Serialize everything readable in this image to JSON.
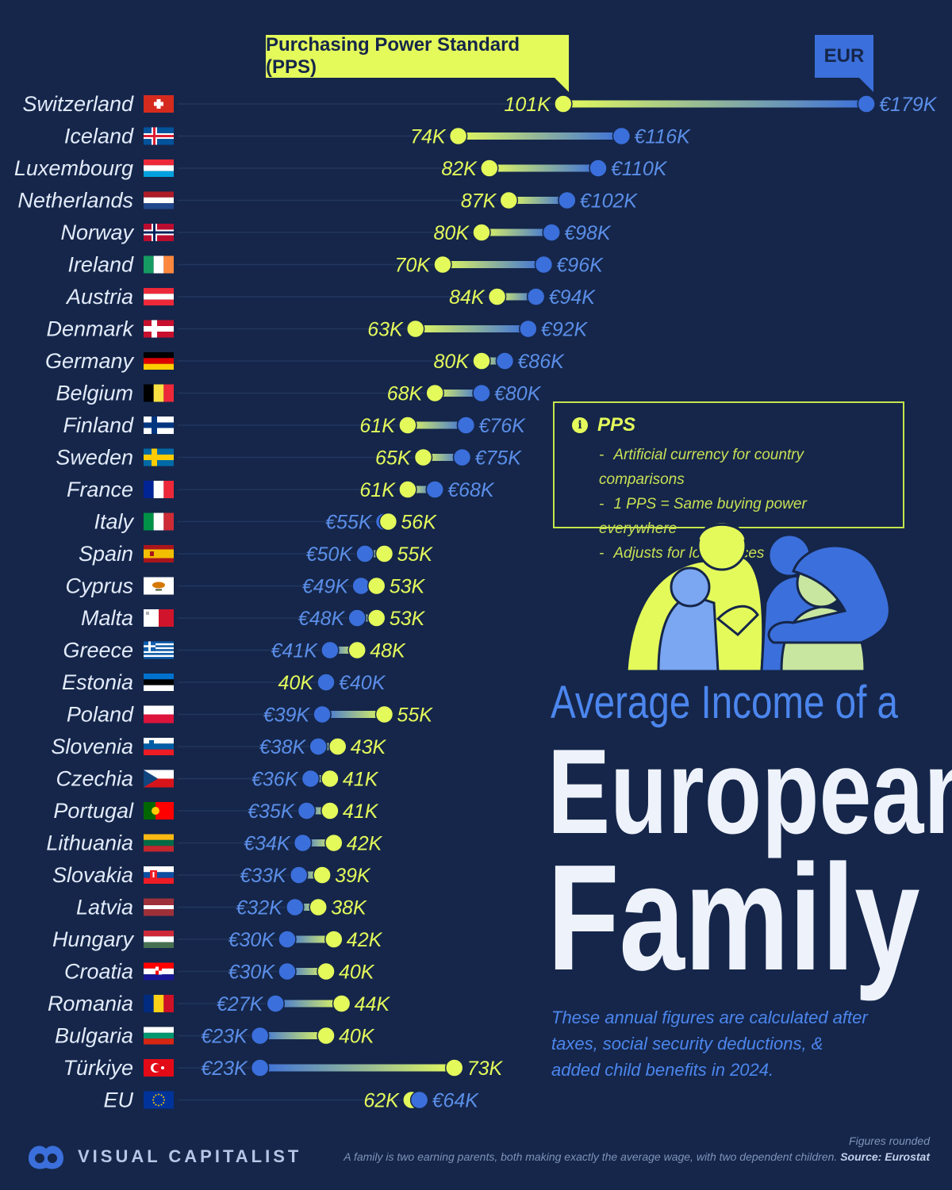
{
  "header": {
    "pps_label": "Purchasing Power Standard (PPS)",
    "eur_label": "EUR"
  },
  "title": {
    "line1": "Average Income of a",
    "line2": "European",
    "line3": "Family"
  },
  "subtitle": "These annual figures are calculated after taxes, social security deductions, & added child benefits in 2024.",
  "info_box": {
    "title": "PPS",
    "items": [
      "Artificial currency for country comparisons",
      "1 PPS = Same buying power everywhere",
      "Adjusts for local prices"
    ]
  },
  "footer": {
    "brand": "VISUAL CAPITALIST",
    "rounded": "Figures rounded",
    "note": "A family is two earning parents, both making exactly the average wage, with two dependent children.",
    "source": "Source: Eurostat"
  },
  "colors": {
    "background": "#15264a",
    "pps": "#e4fa5b",
    "eur": "#3b6fdb",
    "eur_text": "#5b8ee8",
    "country_text": "#e3ebfa"
  },
  "chart_data": {
    "type": "dumbbell",
    "units": "thousands",
    "series": [
      {
        "name": "Purchasing Power Standard (PPS)",
        "color": "#e4fa5b"
      },
      {
        "name": "EUR",
        "color": "#3b6fdb"
      }
    ],
    "rows": [
      {
        "country": "Switzerland",
        "flag": "switzerland",
        "pps": 101,
        "eur": 179,
        "pps_label": "101K",
        "eur_label": "€179K"
      },
      {
        "country": "Iceland",
        "flag": "iceland",
        "pps": 74,
        "eur": 116,
        "pps_label": "74K",
        "eur_label": "€116K"
      },
      {
        "country": "Luxembourg",
        "flag": "luxembourg",
        "pps": 82,
        "eur": 110,
        "pps_label": "82K",
        "eur_label": "€110K"
      },
      {
        "country": "Netherlands",
        "flag": "netherlands",
        "pps": 87,
        "eur": 102,
        "pps_label": "87K",
        "eur_label": "€102K"
      },
      {
        "country": "Norway",
        "flag": "norway",
        "pps": 80,
        "eur": 98,
        "pps_label": "80K",
        "eur_label": "€98K"
      },
      {
        "country": "Ireland",
        "flag": "ireland",
        "pps": 70,
        "eur": 96,
        "pps_label": "70K",
        "eur_label": "€96K"
      },
      {
        "country": "Austria",
        "flag": "austria",
        "pps": 84,
        "eur": 94,
        "pps_label": "84K",
        "eur_label": "€94K"
      },
      {
        "country": "Denmark",
        "flag": "denmark",
        "pps": 63,
        "eur": 92,
        "pps_label": "63K",
        "eur_label": "€92K"
      },
      {
        "country": "Germany",
        "flag": "germany",
        "pps": 80,
        "eur": 86,
        "pps_label": "80K",
        "eur_label": "€86K"
      },
      {
        "country": "Belgium",
        "flag": "belgium",
        "pps": 68,
        "eur": 80,
        "pps_label": "68K",
        "eur_label": "€80K"
      },
      {
        "country": "Finland",
        "flag": "finland",
        "pps": 61,
        "eur": 76,
        "pps_label": "61K",
        "eur_label": "€76K"
      },
      {
        "country": "Sweden",
        "flag": "sweden",
        "pps": 65,
        "eur": 75,
        "pps_label": "65K",
        "eur_label": "€75K"
      },
      {
        "country": "France",
        "flag": "france",
        "pps": 61,
        "eur": 68,
        "pps_label": "61K",
        "eur_label": "€68K"
      },
      {
        "country": "Italy",
        "flag": "italy",
        "pps": 56,
        "eur": 55,
        "pps_label": "56K",
        "eur_label": "€55K"
      },
      {
        "country": "Spain",
        "flag": "spain",
        "pps": 55,
        "eur": 50,
        "pps_label": "55K",
        "eur_label": "€50K"
      },
      {
        "country": "Cyprus",
        "flag": "cyprus",
        "pps": 53,
        "eur": 49,
        "pps_label": "53K",
        "eur_label": "€49K"
      },
      {
        "country": "Malta",
        "flag": "malta",
        "pps": 53,
        "eur": 48,
        "pps_label": "53K",
        "eur_label": "€48K"
      },
      {
        "country": "Greece",
        "flag": "greece",
        "pps": 48,
        "eur": 41,
        "pps_label": "48K",
        "eur_label": "€41K"
      },
      {
        "country": "Estonia",
        "flag": "estonia",
        "pps": 40,
        "eur": 40,
        "pps_label": "40K",
        "eur_label": "€40K"
      },
      {
        "country": "Poland",
        "flag": "poland",
        "pps": 55,
        "eur": 39,
        "pps_label": "55K",
        "eur_label": "€39K"
      },
      {
        "country": "Slovenia",
        "flag": "slovenia",
        "pps": 43,
        "eur": 38,
        "pps_label": "43K",
        "eur_label": "€38K"
      },
      {
        "country": "Czechia",
        "flag": "czechia",
        "pps": 41,
        "eur": 36,
        "pps_label": "41K",
        "eur_label": "€36K"
      },
      {
        "country": "Portugal",
        "flag": "portugal",
        "pps": 41,
        "eur": 35,
        "pps_label": "41K",
        "eur_label": "€35K"
      },
      {
        "country": "Lithuania",
        "flag": "lithuania",
        "pps": 42,
        "eur": 34,
        "pps_label": "42K",
        "eur_label": "€34K"
      },
      {
        "country": "Slovakia",
        "flag": "slovakia",
        "pps": 39,
        "eur": 33,
        "pps_label": "39K",
        "eur_label": "€33K"
      },
      {
        "country": "Latvia",
        "flag": "latvia",
        "pps": 38,
        "eur": 32,
        "pps_label": "38K",
        "eur_label": "€32K"
      },
      {
        "country": "Hungary",
        "flag": "hungary",
        "pps": 42,
        "eur": 30,
        "pps_label": "42K",
        "eur_label": "€30K"
      },
      {
        "country": "Croatia",
        "flag": "croatia",
        "pps": 40,
        "eur": 30,
        "pps_label": "40K",
        "eur_label": "€30K"
      },
      {
        "country": "Romania",
        "flag": "romania",
        "pps": 44,
        "eur": 27,
        "pps_label": "44K",
        "eur_label": "€27K"
      },
      {
        "country": "Bulgaria",
        "flag": "bulgaria",
        "pps": 40,
        "eur": 23,
        "pps_label": "40K",
        "eur_label": "€23K"
      },
      {
        "country": "Türkiye",
        "flag": "turkiye",
        "pps": 73,
        "eur": 23,
        "pps_label": "73K",
        "eur_label": "€23K"
      },
      {
        "country": "EU",
        "flag": "eu",
        "pps": 62,
        "eur": 64,
        "pps_label": "62K",
        "eur_label": "€64K"
      }
    ]
  }
}
